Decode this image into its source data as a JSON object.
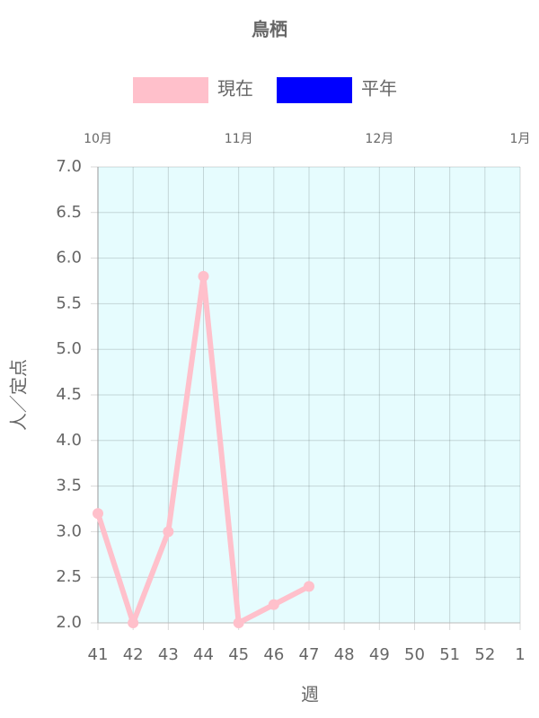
{
  "chart_data": {
    "type": "line",
    "title": "鳥栖",
    "categories": [
      "41",
      "42",
      "43",
      "44",
      "45",
      "46",
      "47",
      "48",
      "49",
      "50",
      "51",
      "52",
      "1"
    ],
    "series": [
      {
        "name": "現在",
        "color": "#ffc0cb",
        "values": [
          3.2,
          2.0,
          3.0,
          5.8,
          2.0,
          2.2,
          2.4,
          null,
          null,
          null,
          null,
          null,
          null
        ]
      },
      {
        "name": "平年",
        "color": "#0000ff",
        "values": [
          null,
          null,
          null,
          null,
          null,
          null,
          null,
          null,
          null,
          null,
          null,
          null,
          null
        ]
      }
    ],
    "x_label": "週",
    "y_label": "人／定点",
    "x2_labels": [
      {
        "value": "41",
        "label": "10月"
      },
      {
        "value": "45",
        "label": "11月"
      },
      {
        "value": "49",
        "label": "12月"
      },
      {
        "value": "1",
        "label": "1月"
      }
    ],
    "ylim": [
      2,
      7
    ],
    "yticks": [
      {
        "value": 2,
        "label": "2.0"
      },
      2.5,
      {
        "value": 3,
        "label": "3.0"
      },
      3.5,
      {
        "value": 4,
        "label": "4.0"
      },
      4.5,
      {
        "value": 5,
        "label": "5.0"
      },
      5.5,
      {
        "value": 6,
        "label": "6.0"
      },
      6.5,
      {
        "value": 7,
        "label": "7.0"
      }
    ],
    "grid": true,
    "plot_background": "#e6fcfe"
  }
}
